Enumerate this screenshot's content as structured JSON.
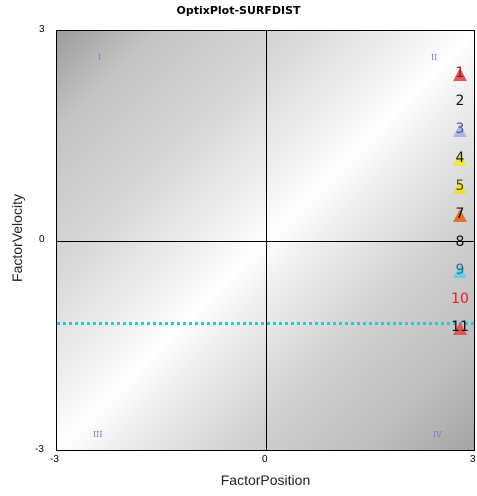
{
  "title": "OptixPlot-SURFDIST",
  "axes": {
    "xlabel": "FactorPosition",
    "ylabel": "FactorVelocity",
    "x_ticks": [
      "-3",
      "0",
      "3"
    ],
    "y_ticks": [
      "3",
      "0",
      "-3"
    ]
  },
  "quadrants": {
    "q1": "I",
    "q2": "II",
    "q3": "III",
    "q4": "IV"
  },
  "reference_line": {
    "value_y": -1.15,
    "color": "#36c3cf"
  },
  "legend": [
    {
      "label": "1",
      "text_color": "#8a1a1a",
      "marker": "triangle",
      "marker_color": "#e05555"
    },
    {
      "label": "2",
      "text_color": "#111111",
      "marker": "none",
      "marker_color": ""
    },
    {
      "label": "3",
      "text_color": "#4a5a8a",
      "marker": "triangle",
      "marker_color": "#a9b8e8"
    },
    {
      "label": "4",
      "text_color": "#1a1a1a",
      "marker": "triangle",
      "marker_color": "#f2e640"
    },
    {
      "label": "5",
      "text_color": "#4a4a1a",
      "marker": "triangle",
      "marker_color": "#eedd33"
    },
    {
      "label": "7",
      "text_color": "#111111",
      "marker": "triangle",
      "marker_color": "#e0702a"
    },
    {
      "label": "8",
      "text_color": "#111111",
      "marker": "none",
      "marker_color": ""
    },
    {
      "label": "9",
      "text_color": "#2e6a88",
      "marker": "triangle",
      "marker_color": "#6ad0dd"
    },
    {
      "label": "10",
      "text_color": "#e02020",
      "marker": "none",
      "marker_color": ""
    },
    {
      "label": "11",
      "text_color": "#111111",
      "marker": "triangle",
      "marker_color": "#e05555"
    }
  ],
  "chart_data": {
    "type": "scatter",
    "title": "OptixPlot-SURFDIST",
    "xlabel": "FactorPosition",
    "ylabel": "FactorVelocity",
    "xlim": [
      -3,
      3
    ],
    "ylim": [
      -3,
      3
    ],
    "grid": false,
    "legend_placement": "right",
    "series": [
      {
        "name": "1",
        "x": [
          2.8
        ],
        "y": [
          2.4
        ]
      },
      {
        "name": "2",
        "x": [
          2.8
        ],
        "y": [
          2.0
        ]
      },
      {
        "name": "3",
        "x": [
          2.8
        ],
        "y": [
          1.6
        ]
      },
      {
        "name": "4",
        "x": [
          2.8
        ],
        "y": [
          1.2
        ]
      },
      {
        "name": "5",
        "x": [
          2.8
        ],
        "y": [
          0.8
        ]
      },
      {
        "name": "7",
        "x": [
          2.8
        ],
        "y": [
          0.4
        ]
      },
      {
        "name": "8",
        "x": [
          2.8
        ],
        "y": [
          0.0
        ]
      },
      {
        "name": "9",
        "x": [
          2.8
        ],
        "y": [
          -0.4
        ]
      },
      {
        "name": "10",
        "x": [
          2.8
        ],
        "y": [
          -0.8
        ]
      },
      {
        "name": "11",
        "x": [
          2.8
        ],
        "y": [
          -1.2
        ]
      }
    ]
  }
}
